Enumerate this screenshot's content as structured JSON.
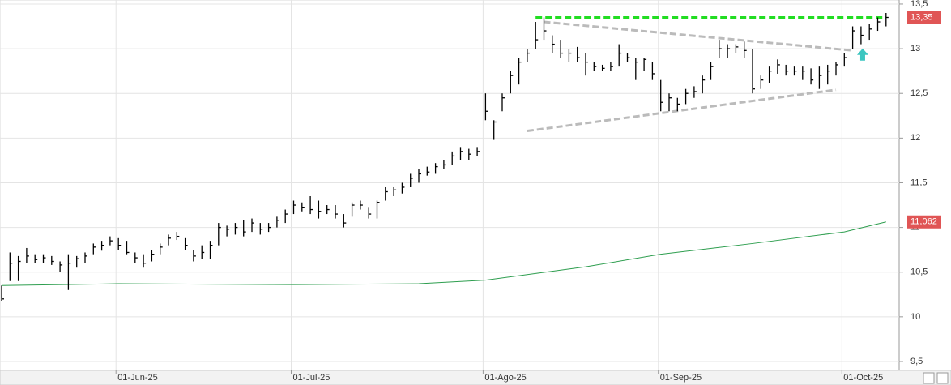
{
  "chart_data": {
    "type": "ohlc",
    "categories": [
      null,
      null,
      null,
      null,
      null,
      null,
      null,
      null,
      null,
      null,
      null,
      null,
      null,
      null,
      "01-Jun-25",
      null,
      null,
      null,
      null,
      null,
      null,
      null,
      null,
      null,
      null,
      null,
      null,
      null,
      null,
      null,
      null,
      null,
      null,
      null,
      null,
      "01-Jul-25",
      null,
      null,
      null,
      null,
      null,
      null,
      null,
      null,
      null,
      null,
      null,
      null,
      null,
      null,
      null,
      null,
      null,
      null,
      null,
      null,
      null,
      null,
      "01-Ago-25",
      null,
      null,
      null,
      null,
      null,
      null,
      null,
      null,
      null,
      null,
      null,
      null,
      null,
      null,
      null,
      null,
      null,
      null,
      null,
      null,
      "01-Sep-25",
      null,
      null,
      null,
      null,
      null,
      null,
      null,
      null,
      null,
      null,
      null,
      null,
      null,
      null,
      null,
      null,
      null,
      null,
      null,
      null,
      null,
      "01-Oct-25",
      null,
      null,
      null,
      null,
      null
    ],
    "high": [
      10.35,
      10.72,
      10.68,
      10.77,
      10.7,
      10.7,
      10.68,
      10.62,
      10.7,
      10.68,
      10.72,
      10.82,
      10.85,
      10.9,
      10.88,
      10.85,
      10.72,
      10.7,
      10.75,
      10.82,
      10.92,
      10.95,
      10.88,
      10.75,
      10.8,
      10.85,
      11.05,
      11.02,
      11.05,
      11.08,
      11.1,
      11.05,
      11.05,
      11.12,
      11.2,
      11.3,
      11.28,
      11.35,
      11.3,
      11.25,
      11.25,
      11.15,
      11.28,
      11.3,
      11.22,
      11.3,
      11.45,
      11.45,
      11.5,
      11.6,
      11.65,
      11.68,
      11.72,
      11.75,
      11.85,
      11.9,
      11.88,
      11.9,
      12.5,
      12.2,
      12.5,
      12.75,
      12.9,
      13.0,
      13.3,
      13.35,
      13.15,
      13.1,
      13.0,
      13.02,
      12.95,
      12.85,
      12.82,
      12.85,
      13.05,
      12.95,
      12.9,
      12.9,
      12.85,
      12.65,
      12.5,
      12.45,
      12.55,
      12.58,
      12.7,
      12.85,
      13.1,
      13.05,
      13.05,
      13.08,
      13.0,
      12.7,
      12.8,
      12.88,
      12.82,
      12.8,
      12.8,
      12.78,
      12.8,
      12.82,
      12.85,
      12.95,
      13.25,
      13.25,
      13.28,
      13.35,
      13.4
    ],
    "low": [
      10.18,
      10.4,
      10.4,
      10.6,
      10.6,
      10.6,
      10.58,
      10.5,
      10.3,
      10.55,
      10.6,
      10.7,
      10.74,
      10.8,
      10.75,
      10.7,
      10.6,
      10.55,
      10.62,
      10.7,
      10.8,
      10.86,
      10.75,
      10.62,
      10.65,
      10.65,
      10.8,
      10.9,
      10.92,
      10.9,
      10.95,
      10.92,
      10.95,
      11.0,
      11.05,
      11.15,
      11.18,
      11.15,
      11.1,
      11.15,
      11.1,
      11.0,
      11.12,
      11.2,
      11.1,
      11.1,
      11.3,
      11.35,
      11.38,
      11.45,
      11.5,
      11.58,
      11.6,
      11.65,
      11.7,
      11.75,
      11.75,
      11.8,
      12.2,
      11.98,
      12.3,
      12.5,
      12.6,
      12.85,
      13.0,
      13.1,
      12.95,
      12.9,
      12.85,
      12.85,
      12.7,
      12.75,
      12.75,
      12.75,
      12.8,
      12.85,
      12.65,
      12.75,
      12.65,
      12.3,
      12.3,
      12.3,
      12.38,
      12.45,
      12.5,
      12.65,
      12.9,
      12.9,
      12.95,
      12.9,
      12.5,
      12.55,
      12.62,
      12.72,
      12.7,
      12.7,
      12.65,
      12.6,
      12.55,
      12.6,
      12.7,
      12.8,
      13.0,
      13.05,
      13.1,
      13.2,
      13.25
    ],
    "close": [
      10.2,
      10.6,
      10.62,
      10.68,
      10.64,
      10.66,
      10.62,
      10.58,
      10.6,
      10.65,
      10.68,
      10.78,
      10.8,
      10.85,
      10.8,
      10.72,
      10.66,
      10.6,
      10.7,
      10.78,
      10.88,
      10.9,
      10.8,
      10.68,
      10.72,
      10.8,
      11.0,
      10.98,
      11.0,
      10.95,
      11.05,
      10.98,
      11.0,
      11.08,
      11.15,
      11.25,
      11.22,
      11.2,
      11.18,
      11.2,
      11.15,
      11.05,
      11.25,
      11.25,
      11.15,
      11.28,
      11.4,
      11.42,
      11.45,
      11.55,
      11.6,
      11.62,
      11.68,
      11.7,
      11.8,
      11.85,
      11.82,
      11.85,
      12.3,
      12.18,
      12.45,
      12.7,
      12.85,
      12.95,
      13.1,
      13.2,
      13.05,
      12.95,
      12.95,
      12.9,
      12.85,
      12.8,
      12.78,
      12.8,
      12.95,
      12.9,
      12.85,
      12.88,
      12.72,
      12.4,
      12.45,
      12.38,
      12.5,
      12.52,
      12.65,
      12.8,
      13.0,
      13.0,
      13.02,
      12.98,
      12.55,
      12.65,
      12.75,
      12.82,
      12.75,
      12.75,
      12.75,
      12.65,
      12.7,
      12.75,
      12.82,
      12.9,
      13.2,
      13.15,
      13.22,
      13.3,
      13.35
    ],
    "color": "#000000",
    "lines": [
      {
        "x": [
          0,
          14,
          35,
          50,
          58,
          70,
          79,
          90,
          101,
          106
        ],
        "values": [
          10.35,
          10.37,
          10.36,
          10.37,
          10.41,
          10.56,
          10.7,
          10.82,
          10.95,
          11.062
        ],
        "color": "#2e9e4f",
        "dashed": false
      },
      {
        "x": [
          64,
          106
        ],
        "values": [
          13.35,
          13.35
        ],
        "color": "#22dd22",
        "dashed": true
      },
      {
        "x": [
          65,
          102
        ],
        "values": [
          13.3,
          12.98
        ],
        "color": "#bbbbbb",
        "dashed": true
      },
      {
        "x": [
          63,
          100
        ],
        "values": [
          12.08,
          12.54
        ],
        "color": "#bbbbbb",
        "dashed": true
      }
    ],
    "price_labels": [
      {
        "value": 13.35,
        "label": "13,35"
      },
      {
        "value": 11.062,
        "label": "11,062"
      }
    ],
    "ylim": [
      9.4,
      13.545
    ],
    "yticks": [
      {
        "value": 9.5,
        "label": "9,5"
      },
      10,
      {
        "value": 10.5,
        "label": "10,5"
      },
      11,
      {
        "value": 11.5,
        "label": "11,5"
      },
      12,
      {
        "value": 12.5,
        "label": "12,5"
      },
      13,
      {
        "value": 13.5,
        "label": "13,5"
      }
    ],
    "grid": true
  }
}
